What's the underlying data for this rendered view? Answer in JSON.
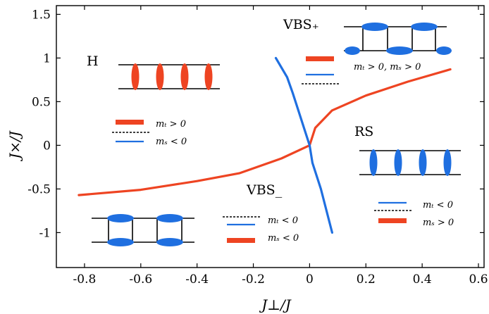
{
  "chart_data": {
    "type": "line",
    "title": "",
    "xlabel": "J⊥/J",
    "ylabel": "J×/J",
    "xlim": [
      -0.9,
      0.62
    ],
    "ylim": [
      -1.4,
      1.6
    ],
    "xticks": [
      "-0.8",
      "-0.6",
      "-0.4",
      "-0.2",
      "0",
      "0.2",
      "0.4",
      "0.6"
    ],
    "yticks": [
      "1.5",
      "1",
      "0.5",
      "0",
      "-0.5",
      "-1"
    ],
    "colors": {
      "red": "#ee4422",
      "blue": "#1f6fe0",
      "black": "#000000"
    },
    "series": [
      {
        "color": "#ee4422",
        "x": [
          -0.82,
          -0.6,
          -0.4,
          -0.25,
          -0.1,
          0.0,
          0.02,
          0.08,
          0.2,
          0.35,
          0.5
        ],
        "y": [
          -0.57,
          -0.51,
          -0.41,
          -0.32,
          -0.15,
          0.0,
          0.2,
          0.4,
          0.57,
          0.73,
          0.87
        ]
      },
      {
        "color": "#1f6fe0",
        "x": [
          -0.12,
          -0.08,
          -0.06,
          -0.04,
          -0.02,
          0.0,
          0.01,
          0.04,
          0.06,
          0.08
        ],
        "y": [
          1.0,
          0.78,
          0.6,
          0.4,
          0.2,
          0.0,
          -0.2,
          -0.5,
          -0.75,
          -1.0
        ]
      }
    ],
    "annotations": [
      {
        "id": "H",
        "text": "H",
        "x": -0.77,
        "y": 1.0
      },
      {
        "id": "VBSplus",
        "text": "VBS₊",
        "x": -0.05,
        "y": 1.42
      },
      {
        "id": "RS",
        "text": "RS",
        "x": 0.17,
        "y": 0.2
      },
      {
        "id": "VBSminus",
        "text": "VBS_",
        "x": -0.2,
        "y": -0.48
      }
    ],
    "legends": [
      {
        "id": "H",
        "entries": [
          "mₜ > 0",
          "mₛ < 0"
        ]
      },
      {
        "id": "VBSplus",
        "entries": [
          "mₜ > 0, mₛ > 0"
        ]
      },
      {
        "id": "RS",
        "entries": [
          "mₜ < 0",
          "mₛ > 0"
        ]
      },
      {
        "id": "VBSminus",
        "entries": [
          "mₜ < 0",
          "mₛ < 0"
        ]
      }
    ]
  }
}
